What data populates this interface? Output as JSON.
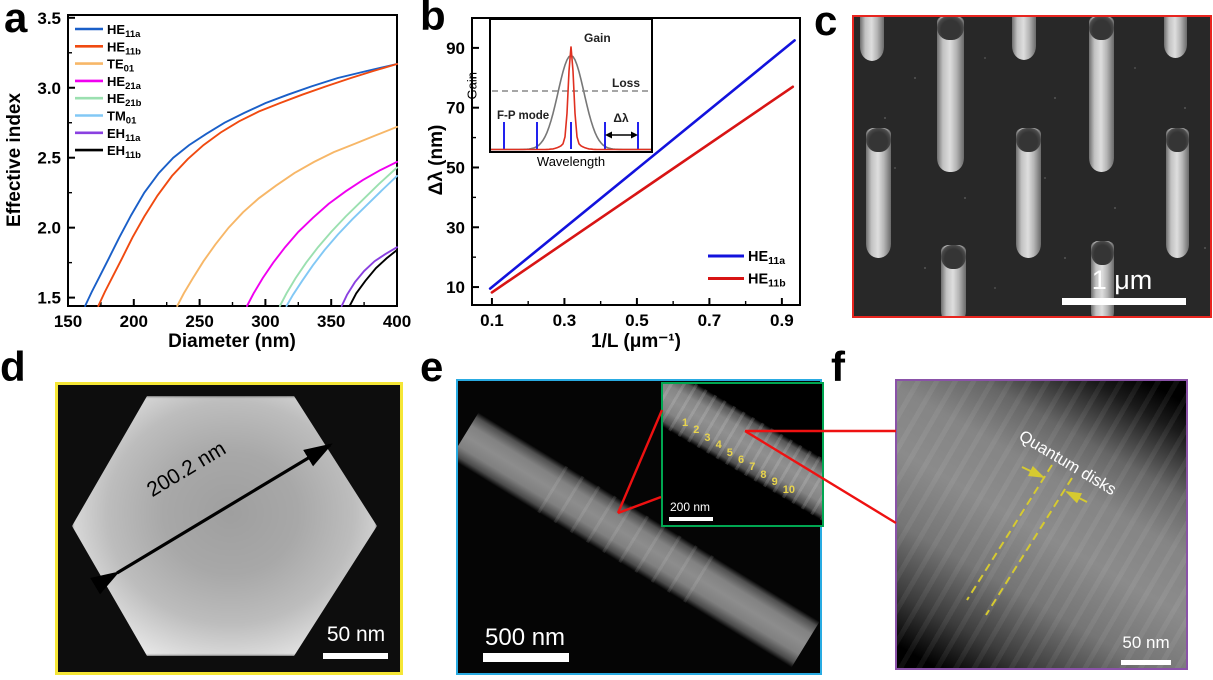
{
  "figure_labels": {
    "a": "a",
    "b": "b",
    "c": "c",
    "d": "d",
    "e": "e",
    "f": "f"
  },
  "chart_data": [
    {
      "id": "panel_a",
      "type": "line",
      "xlabel": "Diameter (nm)",
      "ylabel": "Effective index",
      "xlim": [
        150,
        400
      ],
      "ylim": [
        1.44,
        3.52
      ],
      "xticks": [
        "150",
        "200",
        "250",
        "300",
        "350",
        "400"
      ],
      "xminor": [
        175,
        225,
        275,
        325,
        375
      ],
      "yticks": [
        "1.5",
        "2.0",
        "2.5",
        "3.0",
        "3.5"
      ],
      "yminor": [
        1.75,
        2.25,
        2.75,
        3.25
      ],
      "grid": false,
      "legend_position": "top-left",
      "series": [
        {
          "name": "HE",
          "sub": "11a",
          "color": "#1a5fc8",
          "points": [
            [
              163,
              1.44
            ],
            [
              168,
              1.54
            ],
            [
              174,
              1.65
            ],
            [
              181,
              1.78
            ],
            [
              189,
              1.93
            ],
            [
              198,
              2.09
            ],
            [
              208,
              2.25
            ],
            [
              219,
              2.39
            ],
            [
              230,
              2.5
            ],
            [
              242,
              2.59
            ],
            [
              255,
              2.67
            ],
            [
              269,
              2.75
            ],
            [
              284,
              2.82
            ],
            [
              300,
              2.89
            ],
            [
              317,
              2.95
            ],
            [
              335,
              3.01
            ],
            [
              355,
              3.07
            ],
            [
              377,
              3.12
            ],
            [
              400,
              3.17
            ]
          ]
        },
        {
          "name": "HE",
          "sub": "11b",
          "color": "#f04a10",
          "points": [
            [
              173,
              1.44
            ],
            [
              178,
              1.54
            ],
            [
              184,
              1.65
            ],
            [
              191,
              1.78
            ],
            [
              199,
              1.93
            ],
            [
              208,
              2.08
            ],
            [
              218,
              2.23
            ],
            [
              229,
              2.37
            ],
            [
              241,
              2.49
            ],
            [
              253,
              2.59
            ],
            [
              266,
              2.68
            ],
            [
              280,
              2.76
            ],
            [
              295,
              2.83
            ],
            [
              311,
              2.89
            ],
            [
              328,
              2.95
            ],
            [
              346,
              3.01
            ],
            [
              365,
              3.07
            ],
            [
              382,
              3.12
            ],
            [
              400,
              3.17
            ]
          ]
        },
        {
          "name": "TE",
          "sub": "01",
          "color": "#f7b768",
          "points": [
            [
              233,
              1.44
            ],
            [
              238,
              1.53
            ],
            [
              245,
              1.64
            ],
            [
              253,
              1.76
            ],
            [
              262,
              1.88
            ],
            [
              272,
              2.0
            ],
            [
              283,
              2.11
            ],
            [
              295,
              2.21
            ],
            [
              308,
              2.3
            ],
            [
              322,
              2.39
            ],
            [
              337,
              2.47
            ],
            [
              352,
              2.54
            ],
            [
              368,
              2.6
            ],
            [
              384,
              2.66
            ],
            [
              400,
              2.72
            ]
          ]
        },
        {
          "name": "HE",
          "sub": "21a",
          "color": "#f000f0",
          "points": [
            [
              286,
              1.44
            ],
            [
              291,
              1.53
            ],
            [
              298,
              1.64
            ],
            [
              306,
              1.75
            ],
            [
              315,
              1.86
            ],
            [
              325,
              1.97
            ],
            [
              336,
              2.07
            ],
            [
              348,
              2.17
            ],
            [
              361,
              2.26
            ],
            [
              374,
              2.34
            ],
            [
              387,
              2.41
            ],
            [
              400,
              2.47
            ]
          ]
        },
        {
          "name": "HE",
          "sub": "21b",
          "color": "#9be0b0",
          "points": [
            [
              311,
              1.44
            ],
            [
              316,
              1.53
            ],
            [
              323,
              1.64
            ],
            [
              331,
              1.75
            ],
            [
              340,
              1.86
            ],
            [
              350,
              1.97
            ],
            [
              361,
              2.08
            ],
            [
              373,
              2.19
            ],
            [
              386,
              2.31
            ],
            [
              400,
              2.43
            ]
          ]
        },
        {
          "name": "TM",
          "sub": "01",
          "color": "#82c8f5",
          "points": [
            [
              316,
              1.44
            ],
            [
              321,
              1.52
            ],
            [
              328,
              1.62
            ],
            [
              336,
              1.73
            ],
            [
              345,
              1.84
            ],
            [
              355,
              1.95
            ],
            [
              366,
              2.06
            ],
            [
              378,
              2.17
            ],
            [
              390,
              2.28
            ],
            [
              400,
              2.37
            ]
          ]
        },
        {
          "name": "EH",
          "sub": "11a",
          "color": "#8a40e0",
          "points": [
            [
              358,
              1.44
            ],
            [
              362,
              1.52
            ],
            [
              368,
              1.61
            ],
            [
              375,
              1.69
            ],
            [
              383,
              1.76
            ],
            [
              391,
              1.81
            ],
            [
              400,
              1.86
            ]
          ]
        },
        {
          "name": "EH",
          "sub": "11b",
          "color": "#000000",
          "points": [
            [
              364,
              1.44
            ],
            [
              369,
              1.53
            ],
            [
              376,
              1.62
            ],
            [
              384,
              1.71
            ],
            [
              392,
              1.78
            ],
            [
              400,
              1.84
            ]
          ]
        }
      ]
    },
    {
      "id": "panel_b",
      "type": "line",
      "xlabel": "1/L (μm⁻¹)",
      "ylabel": "Δλ (nm)",
      "xlim": [
        0.045,
        0.95
      ],
      "ylim": [
        4,
        100
      ],
      "xticks": [
        "0.1",
        "0.3",
        "0.5",
        "0.7",
        "0.9"
      ],
      "xminor": [
        0.2,
        0.4,
        0.6,
        0.8
      ],
      "yticks": [
        "10",
        "30",
        "50",
        "70",
        "90"
      ],
      "yminor": [
        20,
        40,
        60,
        80
      ],
      "grid": false,
      "legend_position": "bottom-right",
      "series": [
        {
          "name": "HE",
          "sub": "11a",
          "color": "#1212dd",
          "points": [
            [
              0.095,
              9.5
            ],
            [
              0.935,
              92.5
            ]
          ]
        },
        {
          "name": "HE",
          "sub": "11b",
          "color": "#d81414",
          "points": [
            [
              0.1,
              8.2
            ],
            [
              0.93,
              77
            ]
          ]
        }
      ],
      "inset": {
        "gain_curve_label": "Gain",
        "loss_label": "Loss",
        "fp_mode_label": "F-P mode",
        "delta_lambda_label": "Δλ",
        "xlabel": "Wavelength",
        "ylabel": "Gain"
      }
    }
  ],
  "panel_c": {
    "scale_bar": "1 μm"
  },
  "panel_d": {
    "measurement": "200.2 nm",
    "scale_bar": "50 nm"
  },
  "panel_e": {
    "scale_bar": "500 nm",
    "inset": {
      "numbers": [
        "1",
        "2",
        "3",
        "4",
        "5",
        "6",
        "7",
        "8",
        "9",
        "10"
      ],
      "scale_bar": "200 nm"
    }
  },
  "panel_f": {
    "annotation": "Quantum disks",
    "scale_bar": "50 nm"
  },
  "colors": {
    "panel_c_border": "#e8251f",
    "panel_d_border": "#f5e636",
    "panel_e_border": "#29abe2",
    "panel_e_inset_border": "#00a651",
    "panel_f_border": "#8a52a8",
    "callout_line": "#ee1111",
    "quantum_disk_marker": "#d6ca30",
    "inset_number_color": "#e8d44d",
    "fp_mode_line": "#2222ee",
    "gain_peak": "#e03020",
    "gain_envelope": "#777777"
  }
}
